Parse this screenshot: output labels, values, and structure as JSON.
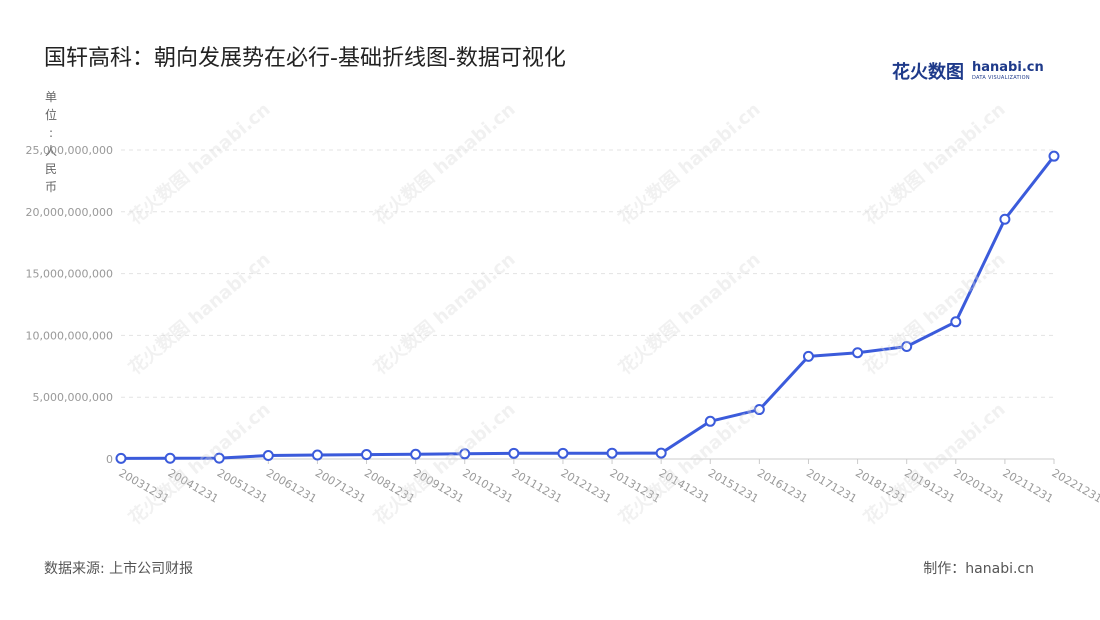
{
  "title": "国轩高科：朝向发展势在必行-基础折线图-数据可视化",
  "logo": {
    "main": "花火数图",
    "domain": "hanabi.cn",
    "sub": "DATA VISUALIZATION"
  },
  "unit_label": "单位：人民币",
  "source": "数据来源: 上市公司财报",
  "credit": "制作：hanabi.cn",
  "colors": {
    "line": "#3b5bdb",
    "grid": "#e3e3e3",
    "axis": "#cccccc",
    "tick_text": "#999999"
  },
  "chart_data": {
    "type": "line",
    "title": "国轩高科：朝向发展势在必行-基础折线图-数据可视化",
    "xlabel": "",
    "ylabel": "单位：人民币",
    "ylim": [
      0,
      25000000000
    ],
    "yticks": [
      0,
      5000000000,
      10000000000,
      15000000000,
      20000000000,
      25000000000
    ],
    "ytick_labels": [
      "0",
      "5,000,000,000",
      "10,000,000,000",
      "15,000,000,000",
      "20,000,000,000",
      "25,000,000,000"
    ],
    "grid": true,
    "categories": [
      "20031231",
      "20041231",
      "20051231",
      "20061231",
      "20071231",
      "20081231",
      "20091231",
      "20101231",
      "20111231",
      "20121231",
      "20131231",
      "20141231",
      "20151231",
      "20161231",
      "20171231",
      "20181231",
      "20191231",
      "20201231",
      "20211231",
      "20221231"
    ],
    "series": [
      {
        "values": [
          50000000,
          60000000,
          70000000,
          280000000,
          320000000,
          360000000,
          380000000,
          420000000,
          460000000,
          460000000,
          470000000,
          480000000,
          3050000000,
          4000000000,
          8300000000,
          8600000000,
          9100000000,
          11100000000,
          19400000000,
          24500000000
        ]
      }
    ]
  }
}
